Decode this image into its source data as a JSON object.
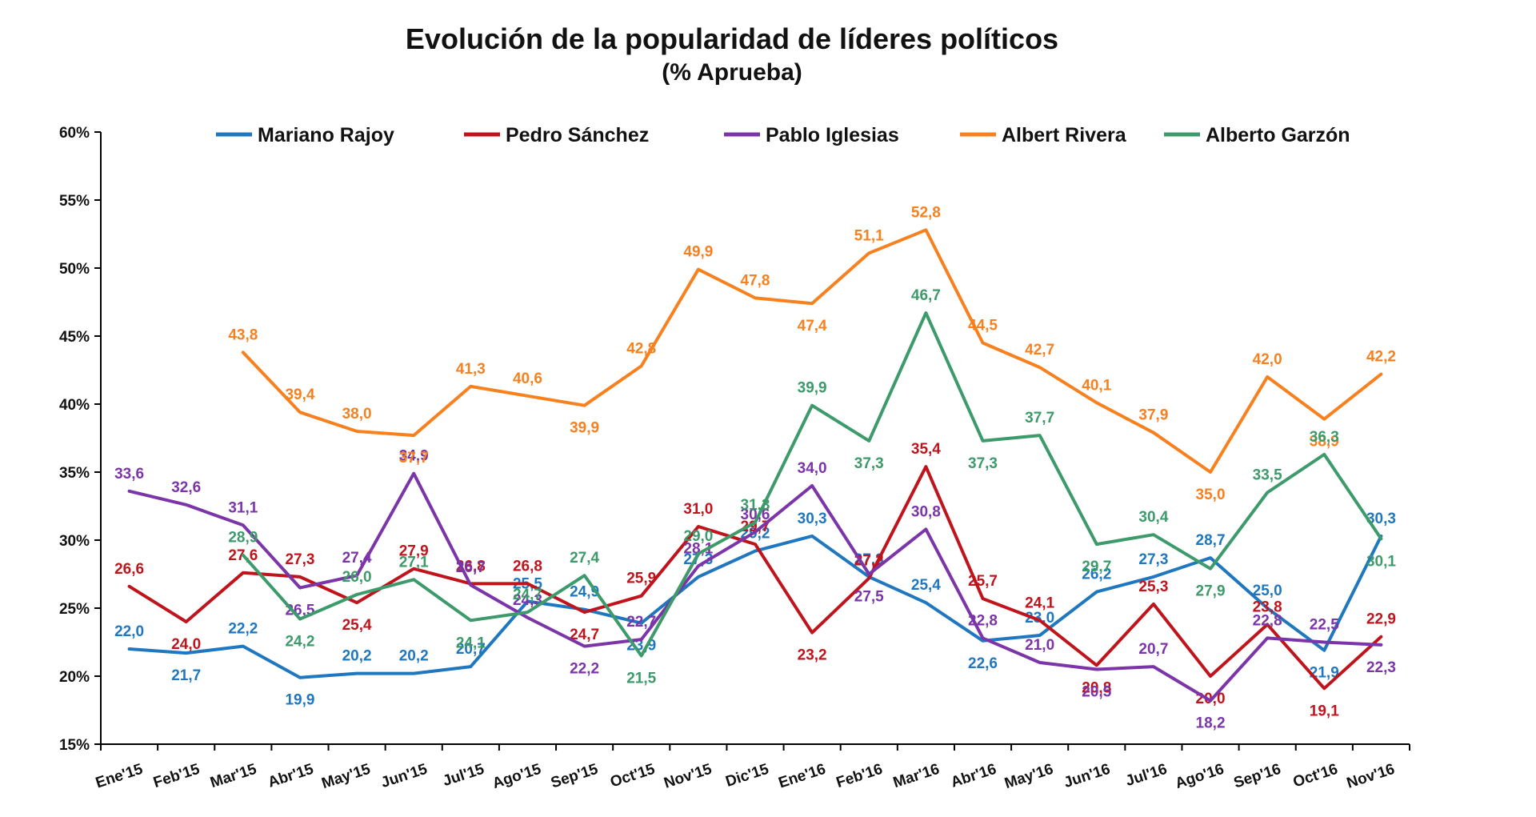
{
  "chart_data": {
    "type": "line",
    "title": "Evolución de la popularidad de líderes políticos",
    "subtitle": "(% Aprueba)",
    "xlabel": "",
    "ylabel": "",
    "ylim": [
      15,
      60
    ],
    "yticks": [
      "15%",
      "20%",
      "25%",
      "30%",
      "35%",
      "40%",
      "45%",
      "50%",
      "55%",
      "60%"
    ],
    "categories": [
      "Ene'15",
      "Feb'15",
      "Mar'15",
      "Abr'15",
      "May'15",
      "Jun'15",
      "Jul'15",
      "Ago'15",
      "Sep'15",
      "Oct'15",
      "Nov'15",
      "Dic'15",
      "Ene'16",
      "Feb'16",
      "Mar'16",
      "Abr'16",
      "May'16",
      "Jun'16",
      "Jul'16",
      "Ago'16",
      "Sep'16",
      "Oct'16",
      "Nov'16"
    ],
    "grid": false,
    "legend_position": "top",
    "series": [
      {
        "name": "Mariano Rajoy",
        "color": "#1f77c0",
        "values": [
          22.0,
          21.7,
          22.2,
          19.9,
          20.2,
          20.2,
          20.7,
          25.5,
          24.9,
          23.9,
          27.3,
          29.2,
          30.3,
          27.3,
          25.4,
          22.6,
          23.0,
          26.2,
          27.3,
          28.7,
          25.0,
          21.9,
          30.3
        ],
        "labels": [
          "22,0",
          "21,7",
          "22,2",
          "19,9",
          "20,2",
          "20,2",
          "20,7",
          "25,5",
          "24,9",
          "23,9",
          "27,3",
          "29,2",
          "30,3",
          "27,3",
          "25,4",
          "22,6",
          "23,0",
          "26,2",
          "27,3",
          "28,7",
          "25,0",
          "21,9",
          "30,3"
        ]
      },
      {
        "name": "Pedro Sánchez",
        "color": "#c0141c",
        "values": [
          26.6,
          24.0,
          27.6,
          27.3,
          25.4,
          27.9,
          26.8,
          26.8,
          24.7,
          25.9,
          31.0,
          29.7,
          23.2,
          27.2,
          35.4,
          25.7,
          24.1,
          20.8,
          25.3,
          20.0,
          23.8,
          19.1,
          22.9
        ],
        "labels": [
          "26,6",
          "24,0",
          "27,6",
          "27,3",
          "25,4",
          "27,9",
          "26,8",
          "26,8",
          "24,7",
          "25,9",
          "31,0",
          "29,7",
          "23,2",
          "27,2",
          "35,4",
          "25,7",
          "24,1",
          "20,8",
          "25,3",
          "20,0",
          "23,8",
          "19,1",
          "22,9"
        ]
      },
      {
        "name": "Pablo Iglesias",
        "color": "#7b35a8",
        "values": [
          33.6,
          32.6,
          31.1,
          26.5,
          27.4,
          34.9,
          26.7,
          24.3,
          22.2,
          22.7,
          28.1,
          30.6,
          34.0,
          27.5,
          30.8,
          22.8,
          21.0,
          20.5,
          20.7,
          18.2,
          22.8,
          22.5,
          22.3
        ],
        "labels": [
          "33,6",
          "32,6",
          "31,1",
          "26,5",
          "27,4",
          "34,9",
          "26,7",
          "24,3",
          "22,2",
          "22,7",
          "28,1",
          "30,6",
          "34,0",
          "27,5",
          "30,8",
          "22,8",
          "21,0",
          "20,5",
          "20,7",
          "18,2",
          "22,8",
          "22,5",
          "22,3"
        ]
      },
      {
        "name": "Albert Rivera",
        "color": "#f7801f",
        "values": [
          null,
          null,
          43.8,
          39.4,
          38.0,
          37.7,
          41.3,
          40.6,
          39.9,
          42.8,
          49.9,
          47.8,
          47.4,
          51.1,
          52.8,
          44.5,
          42.7,
          40.1,
          37.9,
          35.0,
          42.0,
          38.9,
          42.2
        ],
        "labels": [
          null,
          null,
          "43,8",
          "39,4",
          "38,0",
          "37,7",
          "41,3",
          "40,6",
          "39,9",
          "42,8",
          "49,9",
          "47,8",
          "47,4",
          "51,1",
          "52,8",
          "44,5",
          "42,7",
          "40,1",
          "37,9",
          "35,0",
          "42,0",
          "38,9",
          "42,2"
        ]
      },
      {
        "name": "Alberto Garzón",
        "color": "#3d9a6b",
        "values": [
          null,
          null,
          28.9,
          24.2,
          26.0,
          27.1,
          24.1,
          24.7,
          27.4,
          21.5,
          29.0,
          31.3,
          39.9,
          37.3,
          46.7,
          37.3,
          37.7,
          29.7,
          30.4,
          27.9,
          33.5,
          36.3,
          30.1
        ],
        "labels": [
          null,
          null,
          "28,9",
          "24,2",
          "26,0",
          "27,1",
          "24,1",
          "24,7",
          "27,4",
          "21,5",
          "29,0",
          "31,3",
          "39,9",
          "37,3",
          "46,7",
          "37,3",
          "37,7",
          "29,7",
          "30,4",
          "27,9",
          "33,5",
          "36,3",
          "30,1"
        ]
      }
    ]
  }
}
